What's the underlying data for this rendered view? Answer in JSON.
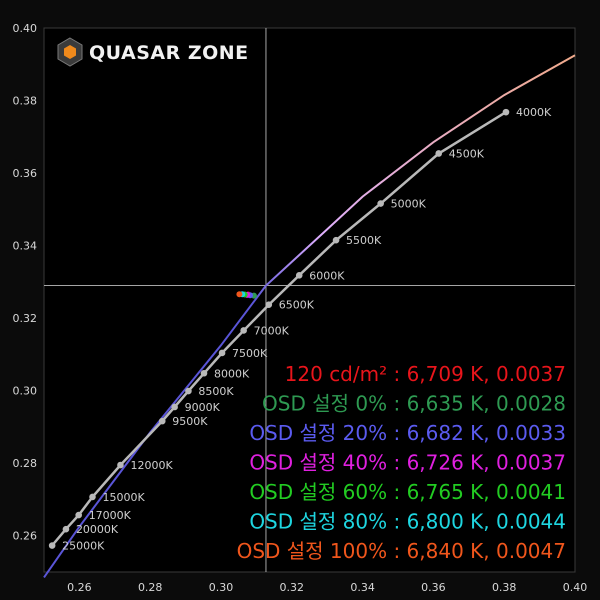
{
  "brand": {
    "logo_text": "QUASAR ZONE",
    "logo_icon": "hexagon-cube-icon",
    "accent": "#f08a1c"
  },
  "chart_data": {
    "type": "scatter",
    "title": "",
    "xlabel": "",
    "ylabel": "",
    "xlim": [
      0.25,
      0.4
    ],
    "ylim": [
      0.25,
      0.4
    ],
    "grid": false,
    "x_ticks": [
      0.26,
      0.28,
      0.3,
      0.32,
      0.34,
      0.36,
      0.38,
      0.4
    ],
    "y_ticks": [
      0.26,
      0.28,
      0.3,
      0.32,
      0.34,
      0.36,
      0.38,
      0.4
    ],
    "x_tick_labels": [
      "0.26",
      "0.28",
      "0.30",
      "0.32",
      "0.34",
      "0.36",
      "0.38",
      "0.40"
    ],
    "y_tick_labels": [
      "0.26",
      "0.28",
      "0.30",
      "0.32",
      "0.34",
      "0.36",
      "0.38",
      "0.40"
    ],
    "reference_lines": {
      "x": 0.3127,
      "y": 0.329,
      "color": "#cfcfcf"
    },
    "planckian_locus": {
      "color": "#b9b9b9",
      "points": [
        {
          "label": "4000K",
          "x": 0.3805,
          "y": 0.3768
        },
        {
          "label": "4500K",
          "x": 0.3615,
          "y": 0.3654
        },
        {
          "label": "5000K",
          "x": 0.3451,
          "y": 0.3516
        },
        {
          "label": "5500K",
          "x": 0.3325,
          "y": 0.3415
        },
        {
          "label": "6000K",
          "x": 0.3221,
          "y": 0.3318
        },
        {
          "label": "6500K",
          "x": 0.3135,
          "y": 0.3237
        },
        {
          "label": "7000K",
          "x": 0.3064,
          "y": 0.3166
        },
        {
          "label": "7500K",
          "x": 0.3003,
          "y": 0.3104
        },
        {
          "label": "8000K",
          "x": 0.2952,
          "y": 0.3048
        },
        {
          "label": "8500K",
          "x": 0.2908,
          "y": 0.2999
        },
        {
          "label": "9000K",
          "x": 0.2869,
          "y": 0.2955
        },
        {
          "label": "9500K",
          "x": 0.2834,
          "y": 0.2916
        },
        {
          "label": "12000K",
          "x": 0.2716,
          "y": 0.2795
        },
        {
          "label": "15000K",
          "x": 0.2637,
          "y": 0.2707
        },
        {
          "label": "17000K",
          "x": 0.2598,
          "y": 0.2657
        },
        {
          "label": "20000K",
          "x": 0.2562,
          "y": 0.2618
        },
        {
          "label": "25000K",
          "x": 0.2523,
          "y": 0.2573
        }
      ]
    },
    "daylight_locus": {
      "color_top": "#f2a97a",
      "color_mid": "#e0b0ff",
      "color_bottom": "#5a55d8",
      "points": [
        {
          "x": 0.25,
          "y": 0.2485
        },
        {
          "x": 0.26,
          "y": 0.2625
        },
        {
          "x": 0.28,
          "y": 0.2885
        },
        {
          "x": 0.3,
          "y": 0.3125
        },
        {
          "x": 0.3127,
          "y": 0.329
        },
        {
          "x": 0.32,
          "y": 0.3355
        },
        {
          "x": 0.34,
          "y": 0.3535
        },
        {
          "x": 0.36,
          "y": 0.3685
        },
        {
          "x": 0.38,
          "y": 0.3815
        },
        {
          "x": 0.4,
          "y": 0.3925
        }
      ]
    },
    "series": [
      {
        "name": "120 cd/m² : 6,709 K, 0.0037",
        "color": "#e8151b",
        "x": 0.3077,
        "y": 0.3265
      },
      {
        "name": "OSD 설정 0% : 6,635 K, 0.0028",
        "color": "#2e9a52",
        "x": 0.3093,
        "y": 0.3262
      },
      {
        "name": "OSD 설정 20% : 6,682 K, 0.0033",
        "color": "#5b5bf0",
        "x": 0.3082,
        "y": 0.3263
      },
      {
        "name": "OSD 설정 40% : 6,726 K, 0.0037",
        "color": "#e020e0",
        "x": 0.3074,
        "y": 0.3264
      },
      {
        "name": "OSD 설정 60% : 6,765 K, 0.0041",
        "color": "#22cc22",
        "x": 0.3067,
        "y": 0.3265
      },
      {
        "name": "OSD 설정 80% : 6,800 K, 0.0044",
        "color": "#1ed6e0",
        "x": 0.306,
        "y": 0.3266
      },
      {
        "name": "OSD 설정 100% : 6,840 K, 0.0047",
        "color": "#f0561c",
        "x": 0.3052,
        "y": 0.3266
      }
    ]
  }
}
